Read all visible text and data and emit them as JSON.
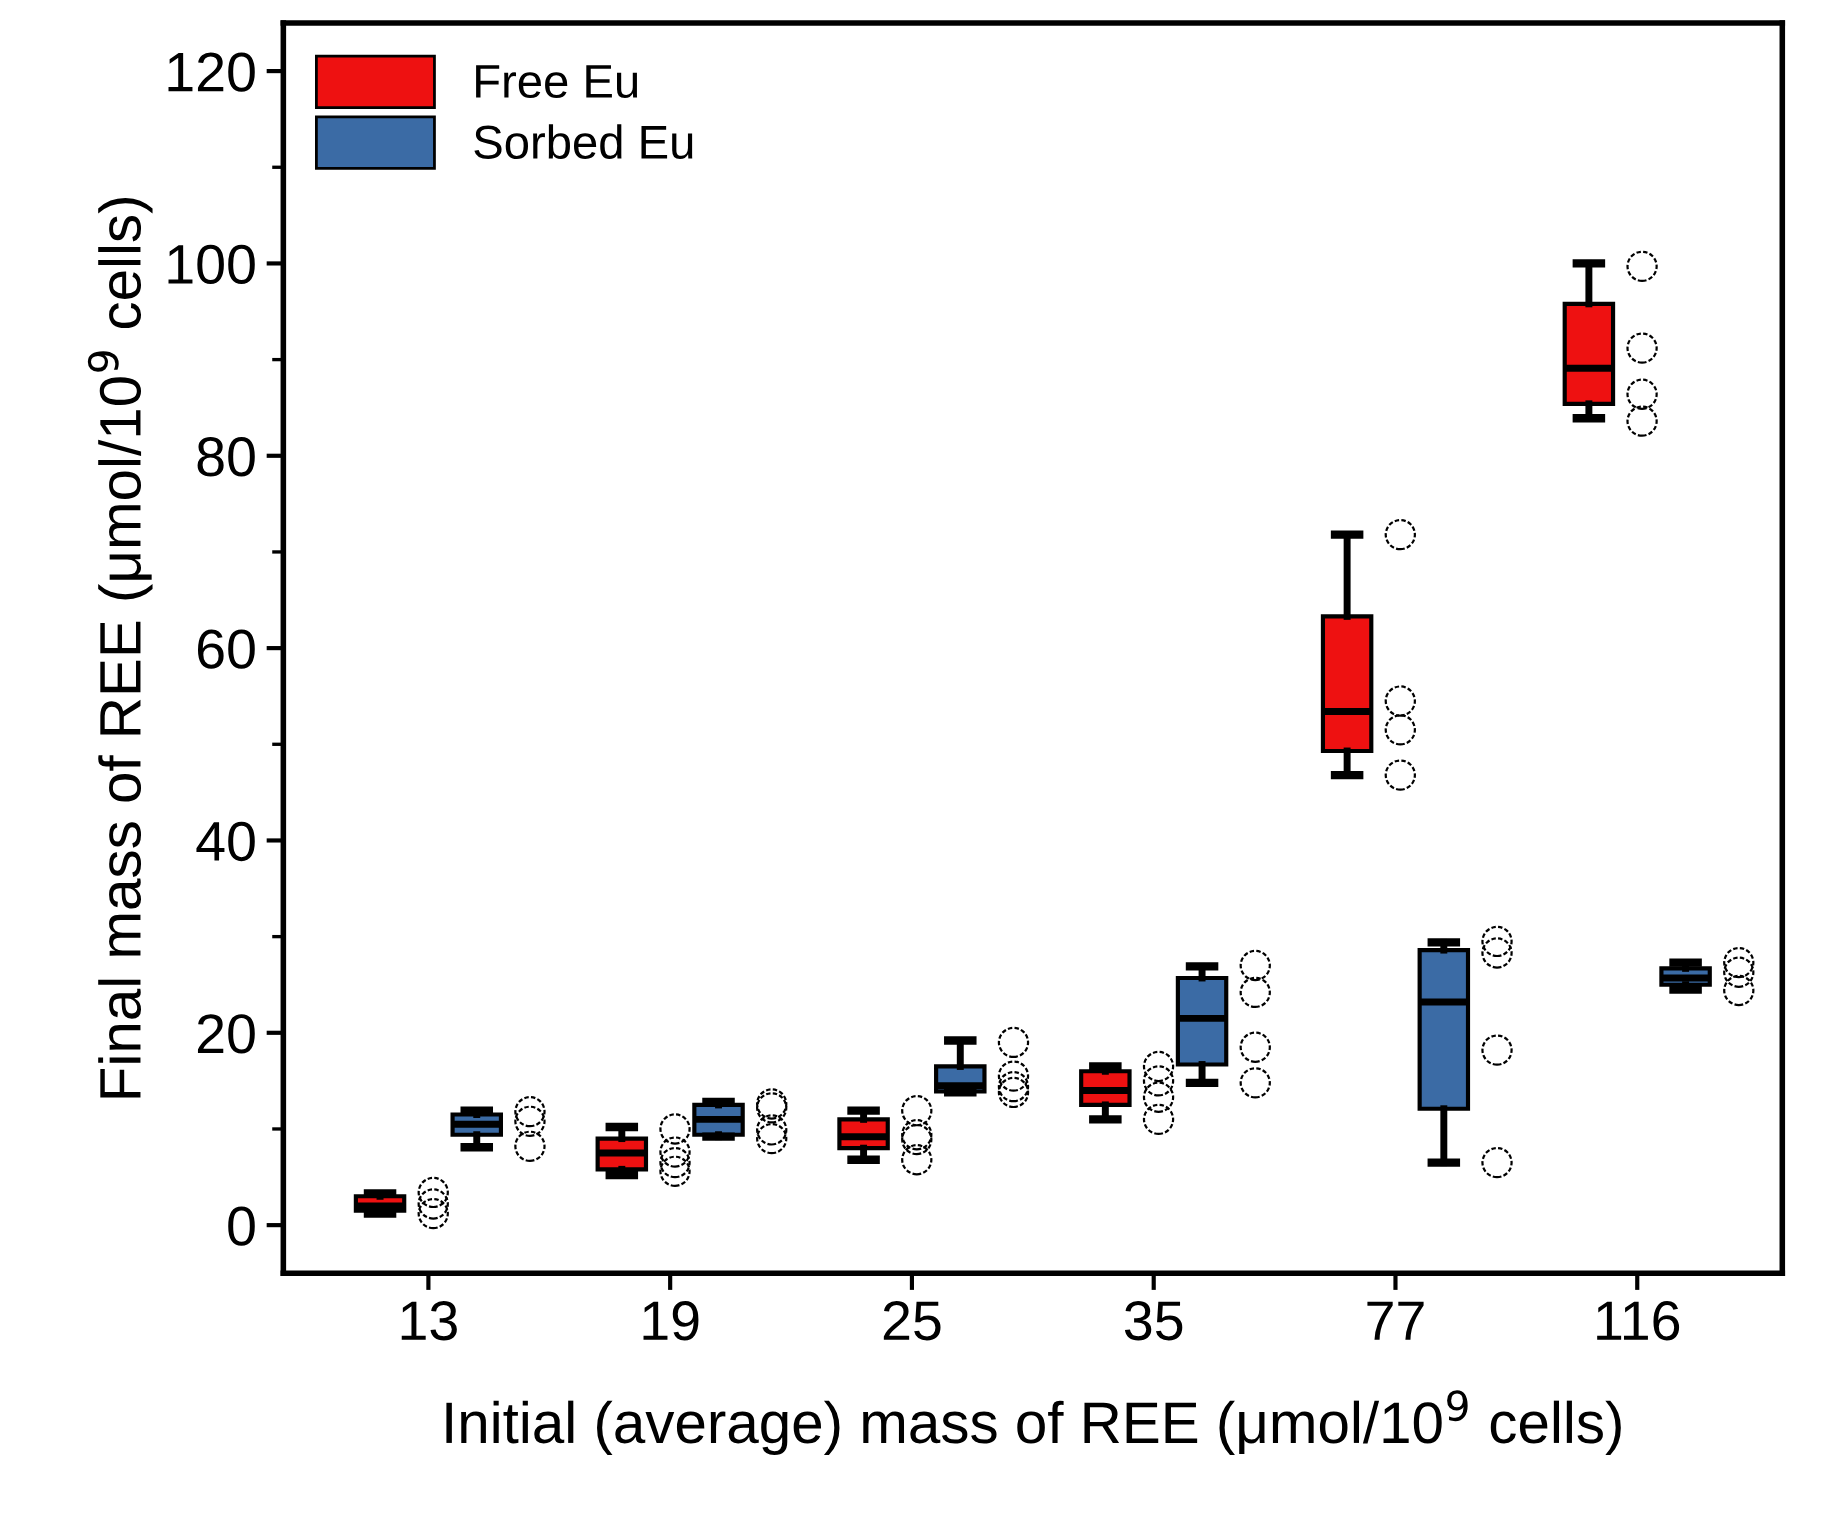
{
  "chart_data": {
    "type": "box",
    "xlabel": "Initial (average) mass of REE (μmol/10$^{9}$ cells)",
    "ylabel": "Final mass of REE (μmol/10$^{9}$ cells)",
    "categories": [
      "13",
      "19",
      "25",
      "35",
      "77",
      "116"
    ],
    "ylim": [
      -5,
      125
    ],
    "yticks": [
      0,
      20,
      40,
      60,
      80,
      100,
      120
    ],
    "grid": false,
    "legend": "top left",
    "series": [
      {
        "name": "Free Eu",
        "color": "#ee1111",
        "boxes": [
          {
            "low": 1.2,
            "q1": 1.5,
            "median": 2,
            "q3": 3,
            "high": 3.3
          },
          {
            "low": 5.2,
            "q1": 5.8,
            "median": 7.5,
            "q3": 9,
            "high": 10.2
          },
          {
            "low": 6.8,
            "q1": 8,
            "median": 9.2,
            "q3": 11,
            "high": 11.9
          },
          {
            "low": 11,
            "q1": 12.5,
            "median": 14,
            "q3": 16,
            "high": 16.5
          },
          {
            "low": 46.8,
            "q1": 49.3,
            "median": 53.4,
            "q3": 63.3,
            "high": 71.8
          },
          {
            "low": 83.9,
            "q1": 85.4,
            "median": 89.1,
            "q3": 95.8,
            "high": 100
          }
        ]
      },
      {
        "name": "Sorbed Eu",
        "color": "#3b6ba5",
        "boxes": [
          {
            "low": 8.1,
            "q1": 9.4,
            "median": 10.5,
            "q3": 11.5,
            "high": 11.9
          },
          {
            "low": 9.2,
            "q1": 9.4,
            "median": 11,
            "q3": 12.5,
            "high": 12.8
          },
          {
            "low": 13.8,
            "q1": 13.9,
            "median": 14.5,
            "q3": 16.5,
            "high": 19.2
          },
          {
            "low": 14.8,
            "q1": 16.7,
            "median": 21.5,
            "q3": 25.7,
            "high": 26.9
          },
          {
            "low": 6.5,
            "q1": 12.1,
            "median": 23.2,
            "q3": 28.6,
            "high": 29.4
          },
          {
            "low": 24.5,
            "q1": 25,
            "median": 25.7,
            "q3": 26.7,
            "high": 27.3
          }
        ]
      },
      {
        "type": "scatter",
        "color": "#000000",
        "marker": "circle",
        "x": [
          "13",
          "13",
          "13",
          "19",
          "19",
          "19",
          "19",
          "25",
          "25",
          "25",
          "25",
          "35",
          "35",
          "35",
          "35",
          "77",
          "77",
          "77",
          "77",
          "116",
          "116",
          "116",
          "116"
        ],
        "values": [
          3.4,
          2.2,
          1.2,
          10,
          7.6,
          6.5,
          5.6,
          11.9,
          9.4,
          8.9,
          6.8,
          16.5,
          15,
          13.3,
          11,
          71.8,
          54.5,
          51.5,
          46.8,
          99.7,
          91.2,
          86.4,
          83.6
        ]
      },
      {
        "type": "scatter",
        "color": "#000000",
        "marker": "circle",
        "x": [
          "13",
          "13",
          "13",
          "19",
          "19",
          "19",
          "19",
          "25",
          "25",
          "25",
          "25",
          "35",
          "35",
          "35",
          "35",
          "77",
          "77",
          "77",
          "77",
          "116",
          "116",
          "116"
        ],
        "values": [
          11.8,
          10.8,
          8.2,
          12.6,
          12.2,
          9.9,
          9,
          19,
          15.5,
          14.4,
          13.8,
          27,
          24.2,
          18.5,
          14.8,
          29.5,
          28.3,
          18.2,
          6.5,
          27.3,
          26.3,
          24.4
        ]
      }
    ]
  }
}
